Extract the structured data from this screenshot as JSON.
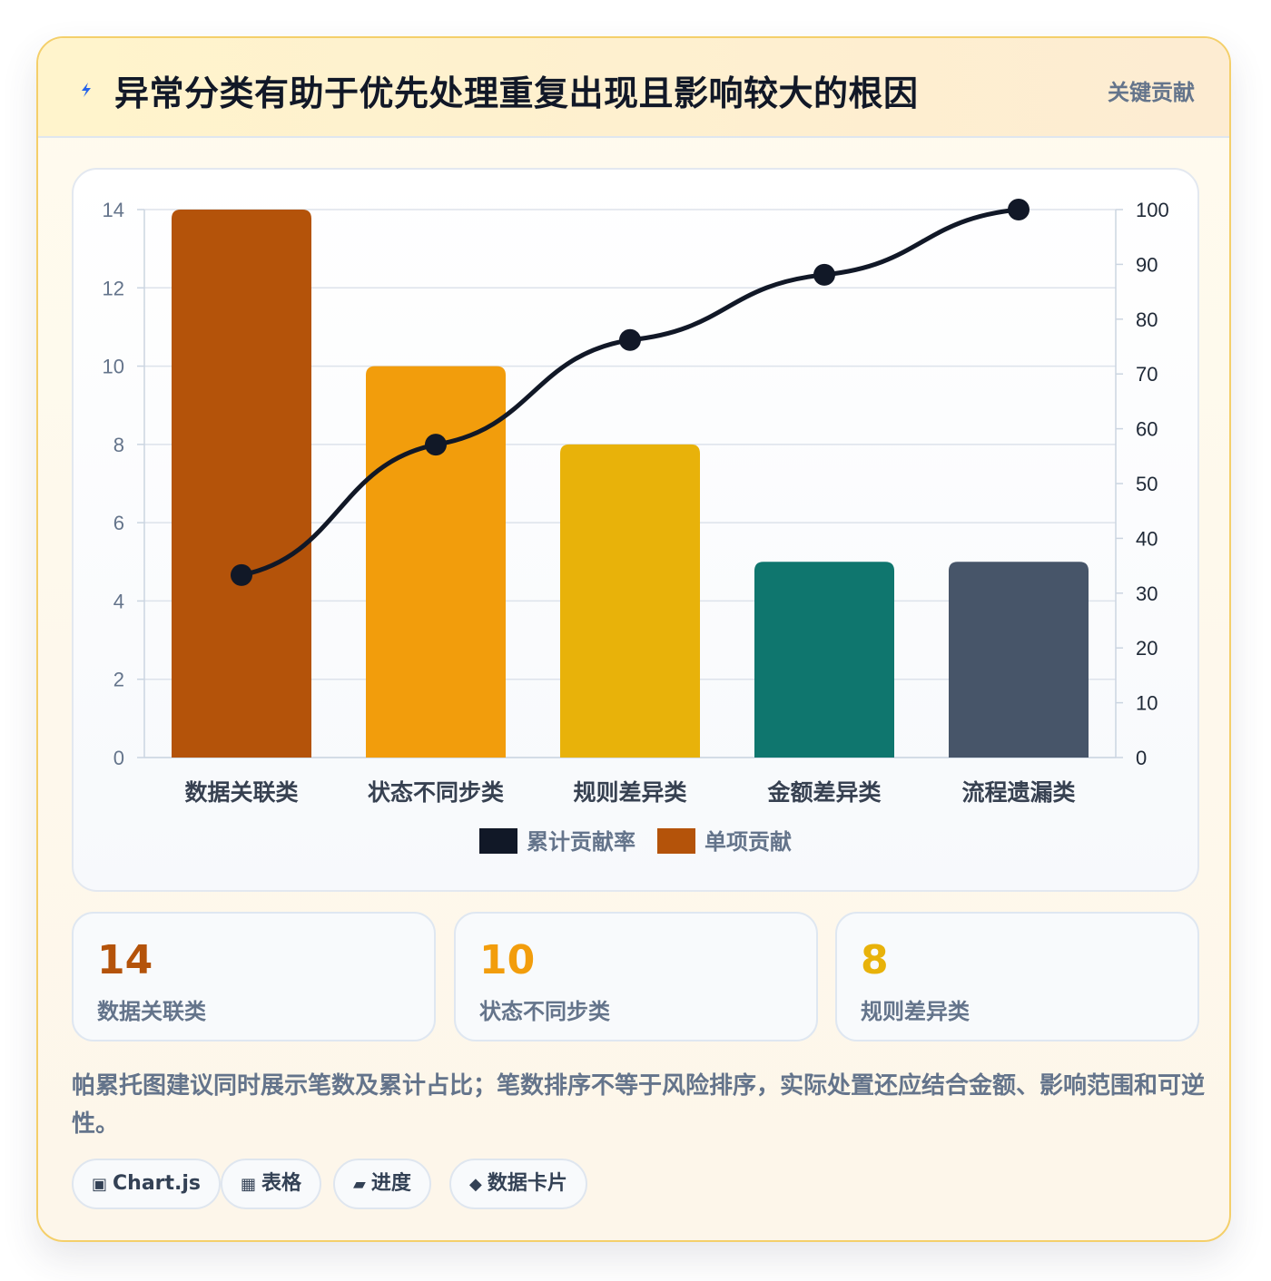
{
  "header": {
    "title": "异常分类有助于优先处理重复出现且影响较大的根因",
    "tag": "关键贡献"
  },
  "colors": {
    "bars": [
      "#b4530a",
      "#f29d0c",
      "#e8b20a",
      "#0f766e",
      "#475569"
    ],
    "line": "#111827",
    "grid": "#dde3eb"
  },
  "chart_data": {
    "type": "bar",
    "categories": [
      "数据关联类",
      "状态不同步类",
      "规则差异类",
      "金额差异类",
      "流程遗漏类"
    ],
    "series": [
      {
        "name": "累计贡献率",
        "type": "line",
        "axis": "right",
        "values": [
          33.3,
          57.1,
          76.2,
          88.1,
          100
        ]
      },
      {
        "name": "单项贡献",
        "type": "bar",
        "axis": "left",
        "values": [
          14,
          10,
          8,
          5,
          5
        ]
      }
    ],
    "ylim": [
      0,
      14
    ],
    "yticks": [
      "0",
      "2",
      "4",
      "6",
      "8",
      "10",
      "12",
      "14"
    ],
    "y2lim": [
      0,
      100
    ],
    "y2ticks": [
      "0",
      "10",
      "20",
      "30",
      "40",
      "50",
      "60",
      "70",
      "80",
      "90",
      "100"
    ],
    "legend": [
      "累计贡献率",
      "单项贡献"
    ],
    "legend_position": "bottom",
    "grid": true
  },
  "stats": [
    {
      "value": "14",
      "label": "数据关联类",
      "color": "#b4530a"
    },
    {
      "value": "10",
      "label": "状态不同步类",
      "color": "#f29d0c"
    },
    {
      "value": "8",
      "label": "规则差异类",
      "color": "#e8b20a"
    }
  ],
  "note": "帕累托图建议同时展示笔数及累计占比；笔数排序不等于风险排序，实际处置还应结合金额、影响范围和可逆性。",
  "chips": [
    {
      "icon": "▣",
      "icon_name": "chart-icon",
      "label": "Chart.js"
    },
    {
      "icon": "▦",
      "icon_name": "table-icon",
      "label": "表格"
    },
    {
      "icon": "▰",
      "icon_name": "progress-icon",
      "label": "进度"
    },
    {
      "icon": "◆",
      "icon_name": "diamond-icon",
      "label": "数据卡片"
    }
  ]
}
